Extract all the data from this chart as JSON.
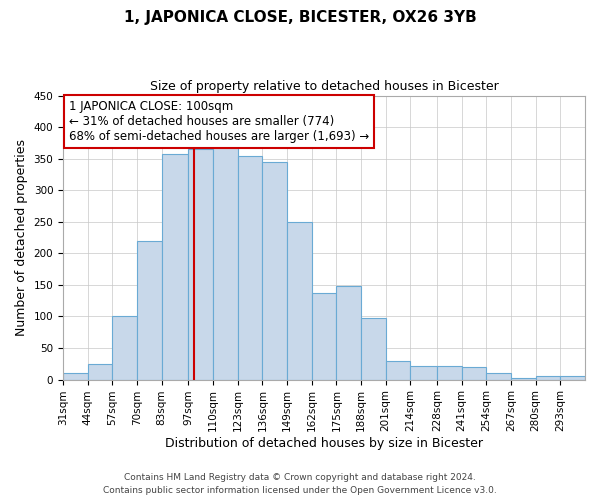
{
  "title": "1, JAPONICA CLOSE, BICESTER, OX26 3YB",
  "subtitle": "Size of property relative to detached houses in Bicester",
  "xlabel": "Distribution of detached houses by size in Bicester",
  "ylabel": "Number of detached properties",
  "bar_labels": [
    "31sqm",
    "44sqm",
    "57sqm",
    "70sqm",
    "83sqm",
    "97sqm",
    "110sqm",
    "123sqm",
    "136sqm",
    "149sqm",
    "162sqm",
    "175sqm",
    "188sqm",
    "201sqm",
    "214sqm",
    "228sqm",
    "241sqm",
    "254sqm",
    "267sqm",
    "280sqm",
    "293sqm"
  ],
  "bar_heights": [
    10,
    25,
    100,
    220,
    358,
    365,
    368,
    355,
    345,
    250,
    137,
    148,
    97,
    30,
    22,
    22,
    20,
    11,
    3,
    5,
    5
  ],
  "bar_edges": [
    31,
    44,
    57,
    70,
    83,
    97,
    110,
    123,
    136,
    149,
    162,
    175,
    188,
    201,
    214,
    228,
    241,
    254,
    267,
    280,
    293,
    306
  ],
  "bar_color": "#c8d8ea",
  "bar_edgecolor": "#6aaad4",
  "vline_x": 100,
  "vline_color": "#cc0000",
  "ylim": [
    0,
    450
  ],
  "yticks": [
    0,
    50,
    100,
    150,
    200,
    250,
    300,
    350,
    400,
    450
  ],
  "annotation_line1": "1 JAPONICA CLOSE: 100sqm",
  "annotation_line2": "← 31% of detached houses are smaller (774)",
  "annotation_line3": "68% of semi-detached houses are larger (1,693) →",
  "annotation_box_edgecolor": "#cc0000",
  "footer_line1": "Contains HM Land Registry data © Crown copyright and database right 2024.",
  "footer_line2": "Contains public sector information licensed under the Open Government Licence v3.0.",
  "background_color": "#ffffff",
  "grid_color": "#c8c8c8",
  "title_fontsize": 11,
  "subtitle_fontsize": 9,
  "ylabel_fontsize": 9,
  "xlabel_fontsize": 9,
  "tick_fontsize": 7.5,
  "annotation_fontsize": 8.5,
  "footer_fontsize": 6.5
}
